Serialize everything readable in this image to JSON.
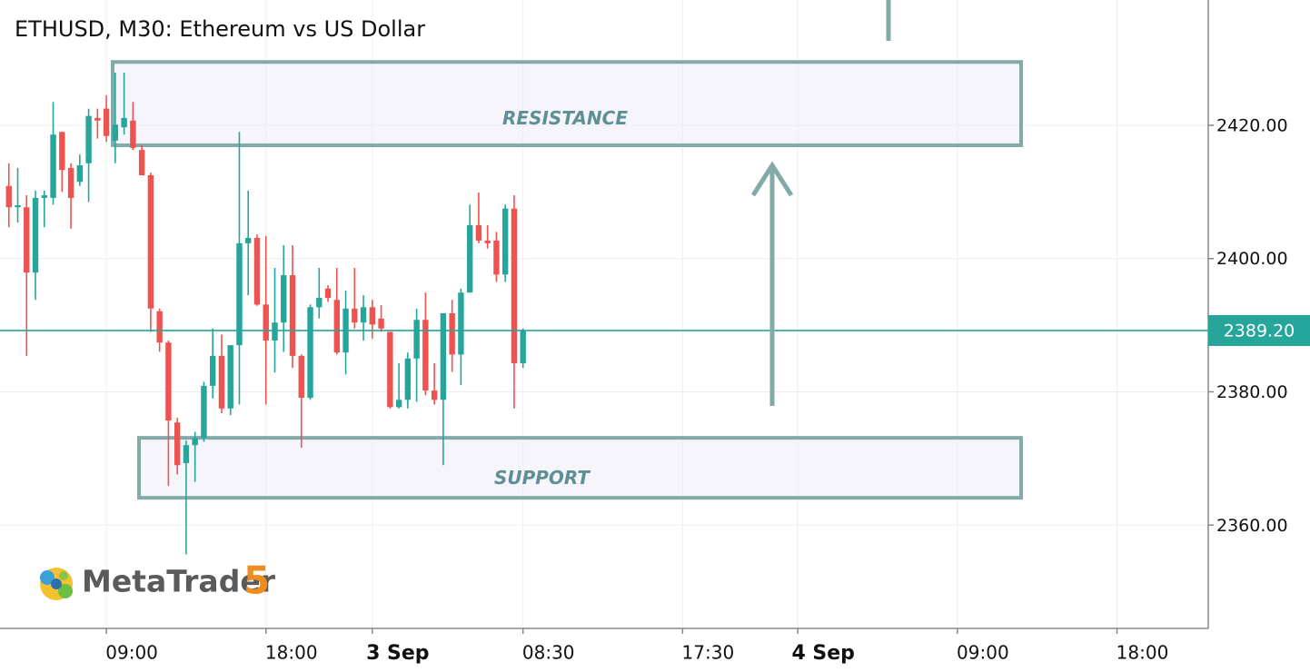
{
  "chart_data": {
    "type": "candlestick",
    "title": "ETHUSD, M30: Ethereum vs US Dollar",
    "logo": {
      "name": "MetaTrader",
      "version": "5"
    },
    "up_color": "#26a69a",
    "down_color": "#ef5350",
    "grid": true,
    "ylim": [
      2344.5,
      2438.8
    ],
    "yticks": [
      {
        "value": 2360,
        "label": "2360.00"
      },
      {
        "value": 2380,
        "label": "2380.00"
      },
      {
        "value": 2400,
        "label": "2400.00"
      },
      {
        "value": 2420,
        "label": "2420.00"
      }
    ],
    "xlim": [
      -1,
      135.3
    ],
    "xticks": [
      {
        "value": 11,
        "label": "09:00"
      },
      {
        "value": 29,
        "label": "18:00"
      },
      {
        "value": 58,
        "label": "08:30"
      },
      {
        "value": 76,
        "label": "17:30"
      },
      {
        "value": 107,
        "label": "09:00"
      },
      {
        "value": 125,
        "label": "18:00"
      }
    ],
    "xticks_day": [
      {
        "value": 41,
        "label": "3 Sep"
      },
      {
        "value": 89,
        "label": "4 Sep"
      }
    ],
    "last_price": {
      "value": 2389.2,
      "label": "2389.20"
    },
    "zones": [
      {
        "label": "RESISTANCE",
        "range": [
          2417.0,
          2429.5
        ]
      },
      {
        "label": "SUPPORT",
        "range": [
          2364.1,
          2373.1
        ]
      }
    ],
    "open": [
      2410.9,
      2407.7,
      2407.7,
      2397.9,
      2409.1,
      2409.1,
      2419.0,
      2413.6,
      2411.5,
      2414.3,
      2421.1,
      2422.5,
      2417.7,
      2419.7,
      2420.7,
      2416.3,
      2412.5,
      2392.1,
      2387.4,
      2375.4,
      2369.3,
      2372.0,
      2373.1,
      2380.9,
      2385.4,
      2377.5,
      2387.0,
      2402.3,
      2403.1,
      2393.1,
      2387.7,
      2390.4,
      2397.5,
      2385.4,
      2379.1,
      2392.7,
      2395.5,
      2393.8,
      2385.9,
      2392.5,
      2390.4,
      2392.7,
      2391.0,
      2389.0,
      2377.7,
      2378.8,
      2385.0,
      2390.8,
      2380.2,
      2378.8,
      2391.8,
      2385.6,
      2394.9,
      2405.0,
      2402.7,
      2402.7,
      2397.6,
      2407.5,
      2384.3
    ],
    "high": [
      2414.3,
      2413.6,
      2409.5,
      2410.2,
      2410.2,
      2423.5,
      2419.0,
      2414.3,
      2415.6,
      2422.5,
      2422.5,
      2424.5,
      2427.9,
      2427.9,
      2423.5,
      2417.0,
      2412.9,
      2392.5,
      2387.7,
      2376.1,
      2372.7,
      2374.0,
      2381.5,
      2389.5,
      2388.6,
      2386.3,
      2419.0,
      2410.2,
      2403.6,
      2403.4,
      2398.6,
      2402.0,
      2402.0,
      2385.6,
      2393.1,
      2398.6,
      2396.0,
      2398.6,
      2395.2,
      2398.6,
      2394.5,
      2393.8,
      2393.0,
      2389.0,
      2384.3,
      2385.9,
      2392.5,
      2394.9,
      2384.3,
      2391.8,
      2393.8,
      2395.5,
      2408.1,
      2409.9,
      2405.0,
      2404.0,
      2408.1,
      2409.5,
      2389.5
    ],
    "low": [
      2404.7,
      2405.4,
      2385.4,
      2393.8,
      2404.7,
      2408.1,
      2410.0,
      2404.5,
      2410.9,
      2408.5,
      2418.0,
      2417.5,
      2414.3,
      2418.6,
      2416.3,
      2412.5,
      2389.0,
      2386.0,
      2365.9,
      2367.6,
      2355.6,
      2366.5,
      2372.5,
      2379.0,
      2376.8,
      2376.5,
      2378.1,
      2394.5,
      2392.9,
      2378.1,
      2382.9,
      2386.0,
      2383.6,
      2371.6,
      2378.8,
      2391.0,
      2393.5,
      2385.6,
      2382.6,
      2389.5,
      2387.7,
      2388.0,
      2389.0,
      2377.5,
      2377.5,
      2377.5,
      2378.5,
      2379.5,
      2378.1,
      2369.0,
      2383.0,
      2381.0,
      2394.9,
      2402.3,
      2401.5,
      2396.5,
      2396.5,
      2377.5,
      2383.6
    ],
    "close": [
      2407.7,
      2408.0,
      2397.9,
      2409.1,
      2409.5,
      2418.6,
      2413.3,
      2409.1,
      2414.0,
      2421.4,
      2420.7,
      2418.4,
      2420.1,
      2421.1,
      2416.6,
      2412.5,
      2392.5,
      2387.4,
      2375.7,
      2369.0,
      2372.0,
      2373.1,
      2380.9,
      2385.4,
      2377.5,
      2387.0,
      2402.3,
      2403.1,
      2393.1,
      2387.7,
      2390.4,
      2397.5,
      2385.4,
      2379.1,
      2392.7,
      2394.1,
      2394.1,
      2385.9,
      2392.5,
      2390.4,
      2392.7,
      2390.1,
      2389.5,
      2377.7,
      2378.8,
      2385.0,
      2390.8,
      2380.2,
      2378.8,
      2391.8,
      2385.6,
      2394.9,
      2405.0,
      2402.7,
      2402.3,
      2397.6,
      2407.5,
      2384.3,
      2389.2
    ]
  }
}
